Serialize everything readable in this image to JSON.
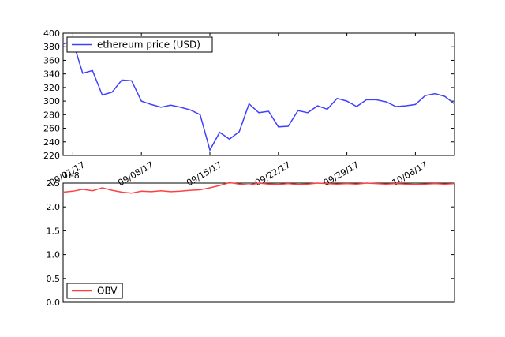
{
  "chart_data": [
    {
      "type": "line",
      "x": [
        "2017-08-31",
        "2017-09-01",
        "2017-09-02",
        "2017-09-03",
        "2017-09-04",
        "2017-09-05",
        "2017-09-06",
        "2017-09-07",
        "2017-09-08",
        "2017-09-09",
        "2017-09-10",
        "2017-09-11",
        "2017-09-12",
        "2017-09-13",
        "2017-09-14",
        "2017-09-15",
        "2017-09-16",
        "2017-09-17",
        "2017-09-18",
        "2017-09-19",
        "2017-09-20",
        "2017-09-21",
        "2017-09-22",
        "2017-09-23",
        "2017-09-24",
        "2017-09-25",
        "2017-09-26",
        "2017-09-27",
        "2017-09-28",
        "2017-09-29",
        "2017-09-30",
        "2017-10-01",
        "2017-10-02",
        "2017-10-03",
        "2017-10-04",
        "2017-10-05",
        "2017-10-06",
        "2017-10-07",
        "2017-10-08",
        "2017-10-09",
        "2017-10-10"
      ],
      "series": [
        {
          "name": "ethereum price (USD)",
          "color": "#4040ff",
          "values": [
            384,
            388,
            341,
            345,
            309,
            313,
            331,
            330,
            300,
            295,
            291,
            294,
            291,
            287,
            280,
            228,
            254,
            244,
            255,
            296,
            283,
            285,
            262,
            263,
            286,
            283,
            293,
            288,
            304,
            300,
            292,
            302,
            302,
            299,
            292,
            293,
            295,
            308,
            311,
            307,
            296
          ]
        }
      ],
      "xlim": [
        "2017-08-31",
        "2017-10-10"
      ],
      "xticks": [
        {
          "value": "2017-09-01",
          "label": "09/01/17"
        },
        {
          "value": "2017-09-08",
          "label": "09/08/17"
        },
        {
          "value": "2017-09-15",
          "label": "09/15/17"
        },
        {
          "value": "2017-09-22",
          "label": "09/22/17"
        },
        {
          "value": "2017-09-29",
          "label": "09/29/17"
        },
        {
          "value": "2017-10-06",
          "label": "10/06/17"
        }
      ],
      "ylim": [
        220,
        400
      ],
      "yticks": [
        220,
        240,
        260,
        280,
        300,
        320,
        340,
        360,
        380,
        400
      ],
      "legend": "upper left"
    },
    {
      "type": "line",
      "x": [
        "2017-08-31",
        "2017-09-01",
        "2017-09-02",
        "2017-09-03",
        "2017-09-04",
        "2017-09-05",
        "2017-09-06",
        "2017-09-07",
        "2017-09-08",
        "2017-09-09",
        "2017-09-10",
        "2017-09-11",
        "2017-09-12",
        "2017-09-13",
        "2017-09-14",
        "2017-09-15",
        "2017-09-16",
        "2017-09-17",
        "2017-09-18",
        "2017-09-19",
        "2017-09-20",
        "2017-09-21",
        "2017-09-22",
        "2017-09-23",
        "2017-09-24",
        "2017-09-25",
        "2017-09-26",
        "2017-09-27",
        "2017-09-28",
        "2017-09-29",
        "2017-09-30",
        "2017-10-01",
        "2017-10-02",
        "2017-10-03",
        "2017-10-04",
        "2017-10-05",
        "2017-10-06",
        "2017-10-07",
        "2017-10-08",
        "2017-10-09",
        "2017-10-10"
      ],
      "series": [
        {
          "name": "OBV",
          "color": "#ff4040",
          "values": [
            2.31,
            2.33,
            2.37,
            2.34,
            2.4,
            2.35,
            2.31,
            2.29,
            2.33,
            2.32,
            2.34,
            2.32,
            2.33,
            2.35,
            2.36,
            2.4,
            2.45,
            2.51,
            2.48,
            2.46,
            2.5,
            2.48,
            2.47,
            2.49,
            2.47,
            2.48,
            2.5,
            2.49,
            2.48,
            2.49,
            2.48,
            2.5,
            2.49,
            2.48,
            2.49,
            2.48,
            2.47,
            2.48,
            2.49,
            2.48,
            2.49
          ]
        }
      ],
      "xlim": [
        "2017-08-31",
        "2017-10-10"
      ],
      "ylim": [
        0,
        2.5
      ],
      "yticks": [
        {
          "value": 0,
          "label": "0.0"
        },
        {
          "value": 0.5,
          "label": "0.5"
        },
        {
          "value": 1,
          "label": "1.0"
        },
        {
          "value": 1.5,
          "label": "1.5"
        },
        {
          "value": 2,
          "label": "2.0"
        },
        {
          "value": 2.5,
          "label": "2.5"
        }
      ],
      "offset_text": "1e8",
      "legend": "lower left"
    }
  ]
}
